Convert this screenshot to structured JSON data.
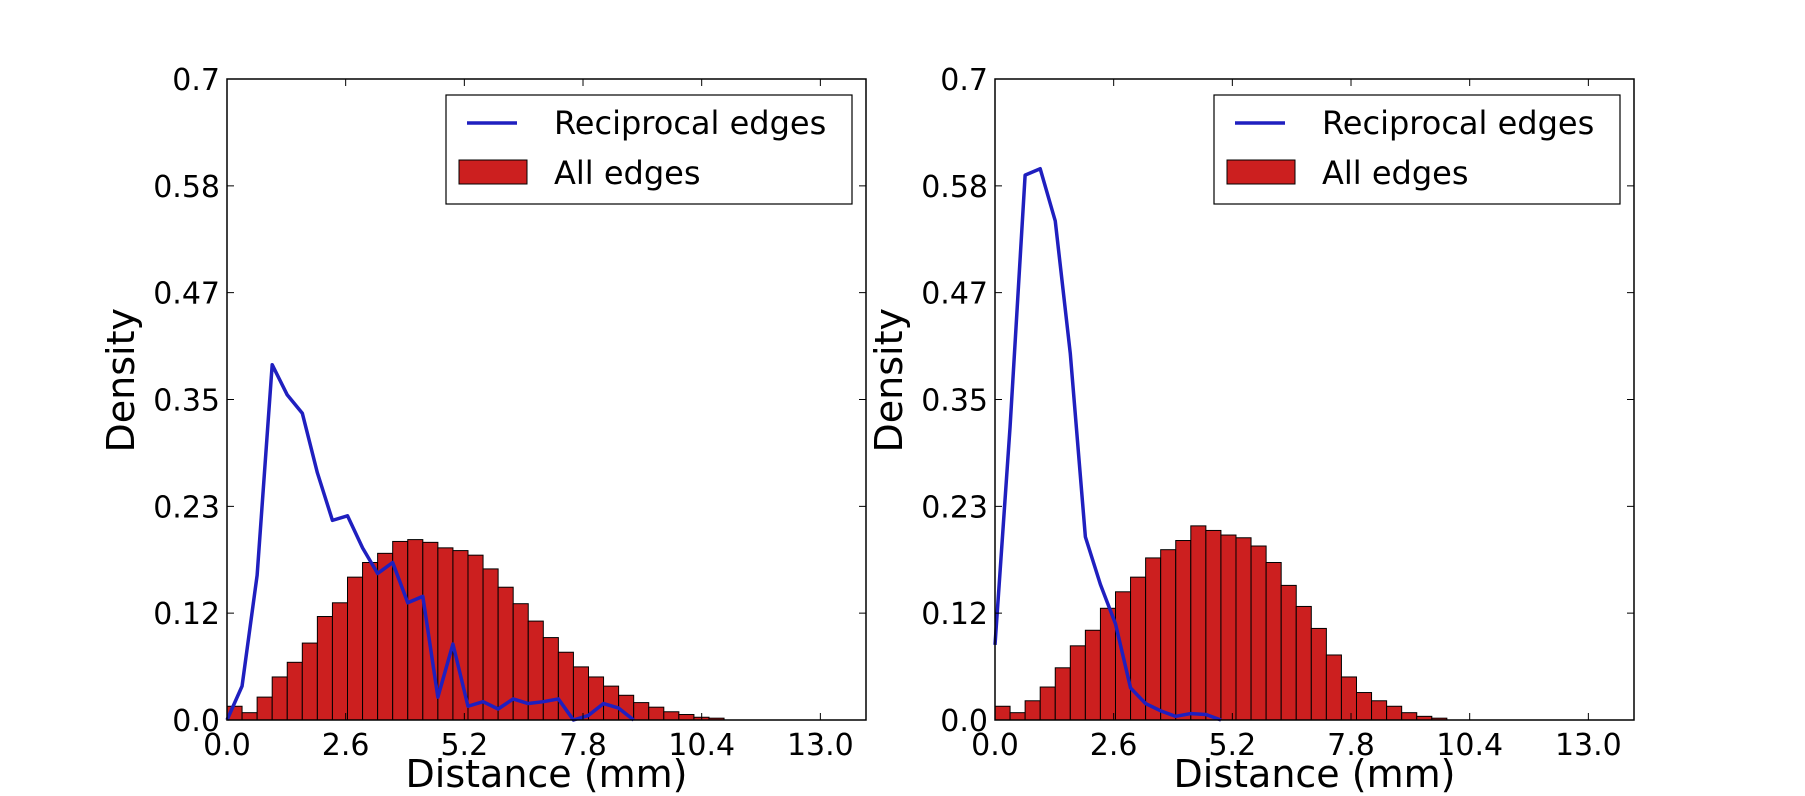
{
  "chart_data": [
    {
      "type": "bar",
      "xlabel": "Distance (mm)",
      "ylabel": "Density",
      "xlim": [
        0.0,
        14.0
      ],
      "ylim": [
        0.0,
        0.7
      ],
      "xticks": [
        "0.0",
        "2.6",
        "5.2",
        "7.8",
        "10.4",
        "13.0"
      ],
      "xtick_values": [
        0.0,
        2.6,
        5.2,
        7.8,
        10.4,
        13.0
      ],
      "yticks": [
        "0.0",
        "0.12",
        "0.23",
        "0.35",
        "0.47",
        "0.58",
        "0.7"
      ],
      "ytick_values": [
        0.0,
        0.1167,
        0.2333,
        0.35,
        0.4667,
        0.5833,
        0.7
      ],
      "legend_position": "top-right",
      "series": [
        {
          "name": "Reciprocal edges",
          "kind": "line",
          "color": "#1f1fbf",
          "x": [
            0.0,
            0.33,
            0.66,
            0.99,
            1.32,
            1.65,
            1.98,
            2.31,
            2.64,
            2.97,
            3.3,
            3.63,
            3.96,
            4.29,
            4.62,
            4.95,
            5.28,
            5.61,
            5.94,
            6.27,
            6.6,
            6.93,
            7.26,
            7.59,
            7.92,
            8.25,
            8.58,
            8.91
          ],
          "y": [
            0.0,
            0.037,
            0.158,
            0.388,
            0.355,
            0.335,
            0.27,
            0.218,
            0.223,
            0.188,
            0.16,
            0.172,
            0.128,
            0.135,
            0.025,
            0.083,
            0.015,
            0.02,
            0.012,
            0.023,
            0.018,
            0.02,
            0.023,
            0.0,
            0.005,
            0.018,
            0.013,
            0.0
          ]
        },
        {
          "name": "All edges",
          "kind": "bars",
          "color": "#cc1f1f",
          "bin_width": 0.33,
          "x": [
            0.0,
            0.33,
            0.66,
            0.99,
            1.32,
            1.65,
            1.98,
            2.31,
            2.64,
            2.97,
            3.3,
            3.63,
            3.96,
            4.29,
            4.62,
            4.95,
            5.28,
            5.61,
            5.94,
            6.27,
            6.6,
            6.93,
            7.26,
            7.59,
            7.92,
            8.25,
            8.58,
            8.91,
            9.24,
            9.57,
            9.9,
            10.23,
            10.56
          ],
          "values": [
            0.015,
            0.008,
            0.025,
            0.047,
            0.063,
            0.084,
            0.113,
            0.128,
            0.156,
            0.172,
            0.182,
            0.195,
            0.197,
            0.194,
            0.188,
            0.185,
            0.18,
            0.165,
            0.145,
            0.127,
            0.108,
            0.09,
            0.074,
            0.058,
            0.047,
            0.037,
            0.027,
            0.019,
            0.014,
            0.009,
            0.006,
            0.003,
            0.002
          ]
        }
      ]
    },
    {
      "type": "bar",
      "xlabel": "Distance (mm)",
      "ylabel": "Density",
      "xlim": [
        0.0,
        14.0
      ],
      "ylim": [
        0.0,
        0.7
      ],
      "xticks": [
        "0.0",
        "2.6",
        "5.2",
        "7.8",
        "10.4",
        "13.0"
      ],
      "xtick_values": [
        0.0,
        2.6,
        5.2,
        7.8,
        10.4,
        13.0
      ],
      "yticks": [
        "0.0",
        "0.12",
        "0.23",
        "0.35",
        "0.47",
        "0.58",
        "0.7"
      ],
      "ytick_values": [
        0.0,
        0.1167,
        0.2333,
        0.35,
        0.4667,
        0.5833,
        0.7
      ],
      "legend_position": "top-right",
      "series": [
        {
          "name": "Reciprocal edges",
          "kind": "line",
          "color": "#1f1fbf",
          "x": [
            0.0,
            0.33,
            0.66,
            0.99,
            1.32,
            1.65,
            1.98,
            2.31,
            2.64,
            2.97,
            3.3,
            3.63,
            3.96,
            4.29,
            4.62,
            4.95
          ],
          "y": [
            0.082,
            0.32,
            0.595,
            0.602,
            0.545,
            0.4,
            0.2,
            0.148,
            0.105,
            0.035,
            0.018,
            0.01,
            0.004,
            0.007,
            0.006,
            0.0
          ]
        },
        {
          "name": "All edges",
          "kind": "bars",
          "color": "#cc1f1f",
          "bin_width": 0.33,
          "x": [
            0.0,
            0.33,
            0.66,
            0.99,
            1.32,
            1.65,
            1.98,
            2.31,
            2.64,
            2.97,
            3.3,
            3.63,
            3.96,
            4.29,
            4.62,
            4.95,
            5.28,
            5.61,
            5.94,
            6.27,
            6.6,
            6.93,
            7.26,
            7.59,
            7.92,
            8.25,
            8.58,
            8.91,
            9.24,
            9.57
          ],
          "values": [
            0.015,
            0.008,
            0.021,
            0.036,
            0.057,
            0.081,
            0.098,
            0.122,
            0.14,
            0.156,
            0.177,
            0.186,
            0.196,
            0.212,
            0.207,
            0.202,
            0.199,
            0.19,
            0.172,
            0.147,
            0.124,
            0.1,
            0.071,
            0.047,
            0.03,
            0.021,
            0.015,
            0.008,
            0.004,
            0.002
          ]
        }
      ]
    }
  ]
}
